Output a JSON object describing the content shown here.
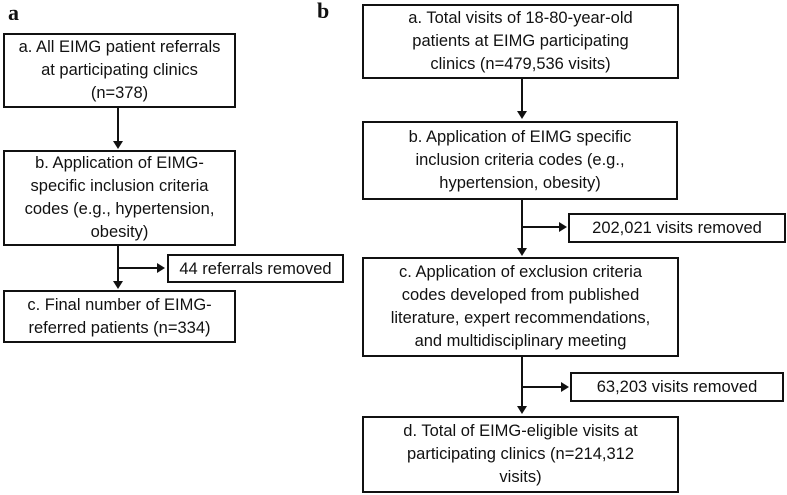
{
  "figure": {
    "type": "flowchart",
    "background_color": "#ffffff",
    "line_color": "#111111"
  },
  "panel_a": {
    "label": "a",
    "box_a": "a. All EIMG patient referrals\nat participating clinics\n(n=378)",
    "box_b": "b. Application of EIMG-\nspecific inclusion criteria\ncodes (e.g., hypertension,\nobesity)",
    "side_box": "44 referrals removed",
    "box_c": "c. Final number of EIMG-\nreferred patients (n=334)"
  },
  "panel_b": {
    "label": "b",
    "box_a": "a. Total visits of 18-80-year-old\npatients at EIMG participating\nclinics (n=479,536 visits)",
    "box_b": "b. Application of EIMG specific\ninclusion criteria codes (e.g.,\nhypertension, obesity)",
    "side_box_1": "202,021 visits removed",
    "box_c": "c. Application of exclusion criteria\ncodes developed from published\nliterature, expert recommendations,\nand multidisciplinary meeting",
    "side_box_2": "63,203 visits removed",
    "box_d": "d. Total of EIMG-eligible visits at\nparticipating clinics (n=214,312\nvisits)"
  }
}
